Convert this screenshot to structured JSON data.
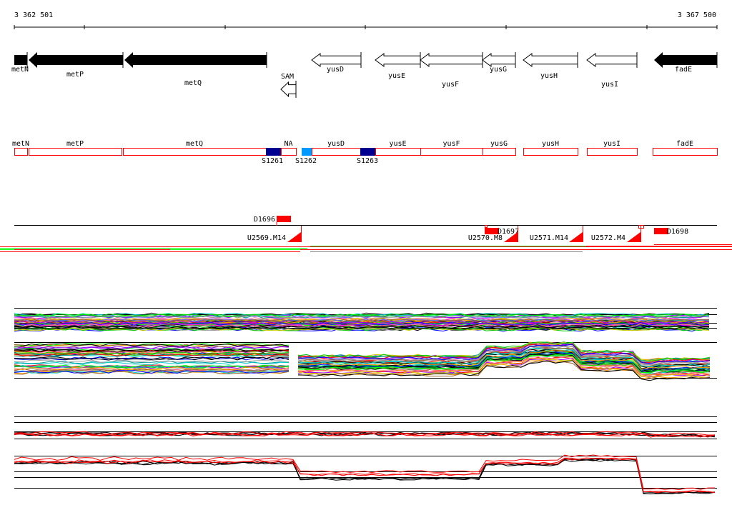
{
  "ruler": {
    "start_label": "3 362 501",
    "end_label": "3 367 500"
  },
  "genes": [
    {
      "name": "metN",
      "strand": "-",
      "style": "filled"
    },
    {
      "name": "metP",
      "strand": "-",
      "style": "filled"
    },
    {
      "name": "metQ",
      "strand": "-",
      "style": "filled"
    },
    {
      "name": "SAM",
      "strand": "-",
      "style": "hollow"
    },
    {
      "name": "yusD",
      "strand": "-",
      "style": "hollow"
    },
    {
      "name": "yusE",
      "strand": "-",
      "style": "hollow"
    },
    {
      "name": "yusF",
      "strand": "-",
      "style": "hollow"
    },
    {
      "name": "yusG",
      "strand": "-",
      "style": "hollow"
    },
    {
      "name": "yusH",
      "strand": "-",
      "style": "hollow"
    },
    {
      "name": "yusI",
      "strand": "-",
      "style": "hollow"
    },
    {
      "name": "fadE",
      "strand": "-",
      "style": "filled"
    }
  ],
  "segments": [
    {
      "label": "metN"
    },
    {
      "label": "metP"
    },
    {
      "label": "metQ"
    },
    {
      "label": "NA"
    },
    {
      "label": "yusD"
    },
    {
      "label": "yusE"
    },
    {
      "label": "yusF"
    },
    {
      "label": "yusG"
    },
    {
      "label": "yusH"
    },
    {
      "label": "yusI"
    },
    {
      "label": "fadE"
    }
  ],
  "sites": [
    {
      "label": "S1261",
      "color": "#000090"
    },
    {
      "label": "S1262",
      "color": "#0099ff"
    },
    {
      "label": "S1263",
      "color": "#000090"
    }
  ],
  "downshifts": [
    {
      "label": "D1696"
    },
    {
      "label": "D1697"
    },
    {
      "label": "D1698"
    }
  ],
  "upshifts": [
    {
      "label": "U2569.M14"
    },
    {
      "label": "U2570.M8"
    },
    {
      "label": "U2571.M14"
    },
    {
      "label": "U2572.M4"
    }
  ],
  "colors": {
    "segment_outline": "#ff0000",
    "feature": "#ff0000",
    "green": "#00ff00",
    "gene_fill": "#000000"
  }
}
